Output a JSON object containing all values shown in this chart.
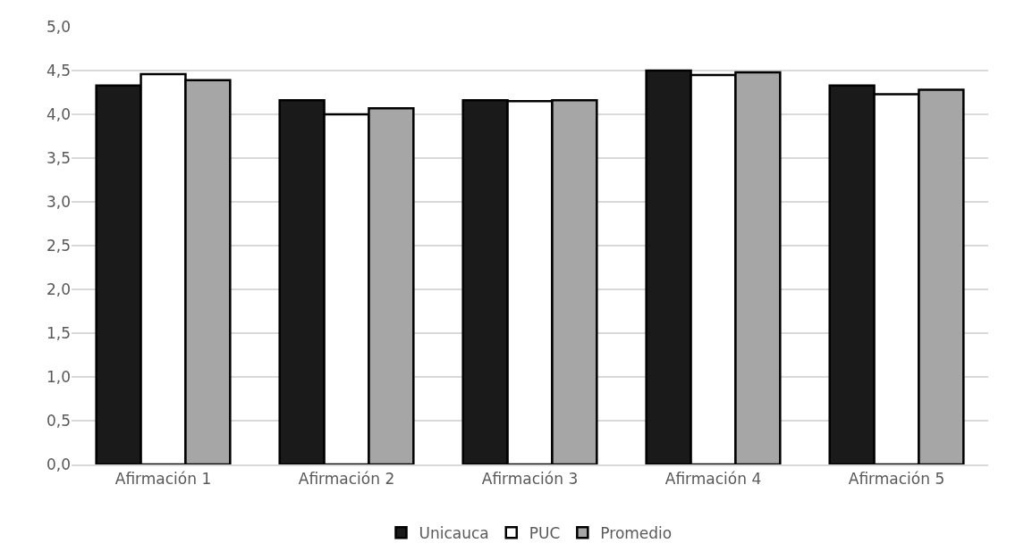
{
  "chart_data": {
    "type": "bar",
    "categories": [
      "Afirmación 1",
      "Afirmación 2",
      "Afirmación 3",
      "Afirmación 4",
      "Afirmación 5"
    ],
    "series": [
      {
        "name": "Unicauca",
        "color": "#1a1a1a",
        "values": [
          4.33,
          4.16,
          4.16,
          4.5,
          4.33
        ]
      },
      {
        "name": "PUC",
        "color": "#ffffff",
        "values": [
          4.46,
          4.0,
          4.15,
          4.45,
          4.23
        ]
      },
      {
        "name": "Promedio",
        "color": "#a6a6a6",
        "values": [
          4.39,
          4.07,
          4.16,
          4.48,
          4.28
        ]
      }
    ],
    "ylim": [
      0,
      5
    ],
    "yticks": [
      {
        "value": 0,
        "label": "0,0"
      },
      {
        "value": 0.5,
        "label": "0,5"
      },
      {
        "value": 1,
        "label": "1,0"
      },
      {
        "value": 1.5,
        "label": "1,5"
      },
      {
        "value": 2,
        "label": "2,0"
      },
      {
        "value": 2.5,
        "label": "2,5"
      },
      {
        "value": 3,
        "label": "3,0"
      },
      {
        "value": 3.5,
        "label": "3,5"
      },
      {
        "value": 4,
        "label": "4,0"
      },
      {
        "value": 4.5,
        "label": "4,5"
      },
      {
        "value": 5,
        "label": "5,0"
      }
    ],
    "grid": "y",
    "legend": "bottom"
  }
}
